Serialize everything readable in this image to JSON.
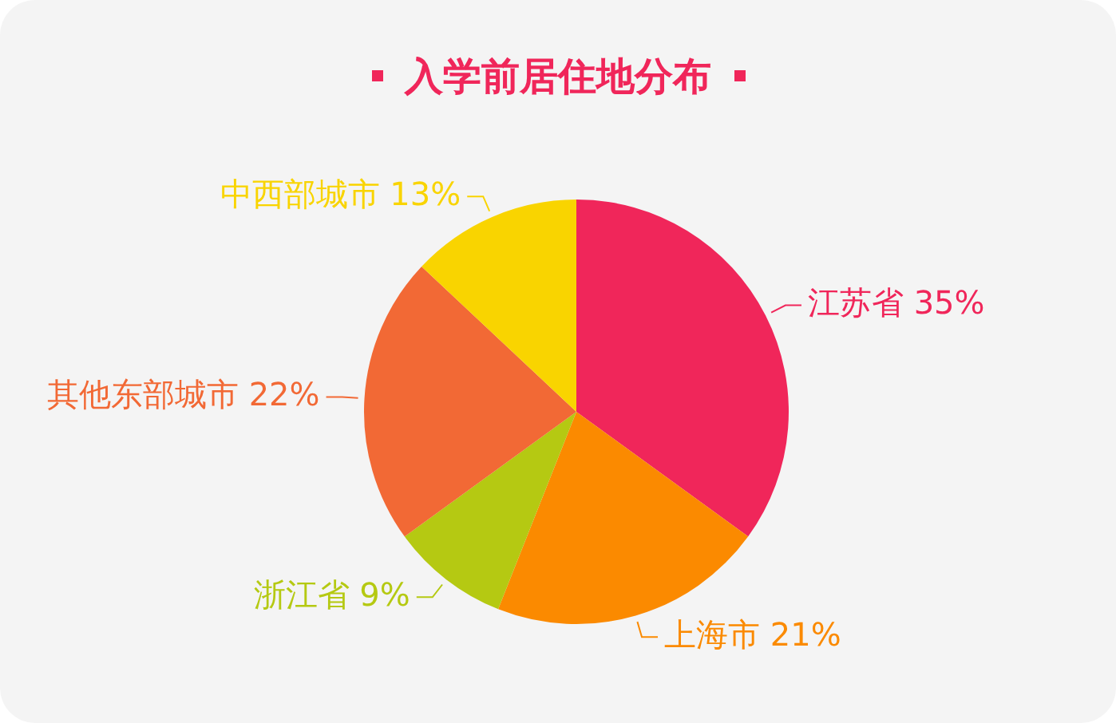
{
  "chart_data": {
    "type": "pie",
    "title": "入学前居住地分布",
    "categories": [
      "江苏省",
      "上海市",
      "浙江省",
      "其他东部城市",
      "中西部城市"
    ],
    "values": [
      35,
      21,
      9,
      22,
      13
    ],
    "value_labels": [
      "35%",
      "21%",
      "9%",
      "22%",
      "13%"
    ],
    "colors": [
      "#f0265a",
      "#fb8a00",
      "#b5c912",
      "#f26935",
      "#f9d400"
    ],
    "legend": false
  }
}
